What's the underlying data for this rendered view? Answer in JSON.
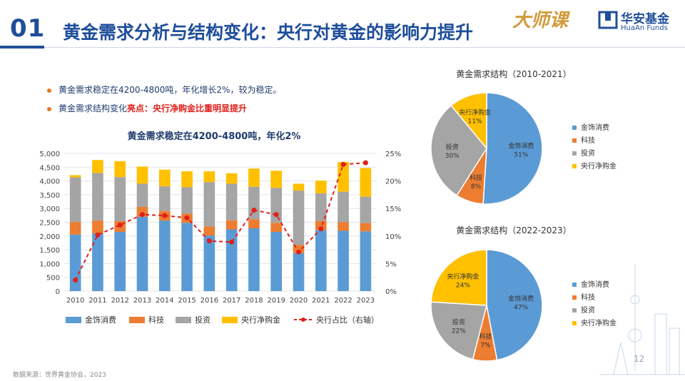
{
  "header": {
    "slide_number": "01",
    "title": "黄金需求分析与结构变化：央行对黄金的影响力提升",
    "course_logo": "大师课",
    "brand_cn": "华安基金",
    "brand_en": "HuaAn Funds"
  },
  "bullets": [
    {
      "text": "黄金需求稳定在4200-4800吨，年化增长2%，较为稳定。"
    },
    {
      "prefix": "黄金需求结构变化",
      "highlight": "亮点：央行净购金比重明显提升"
    }
  ],
  "chart_data": [
    {
      "type": "bar",
      "stacked": true,
      "title": "黄金需求稳定在4200-4800吨，年化2%",
      "categories": [
        "2010",
        "2011",
        "2012",
        "2013",
        "2014",
        "2015",
        "2016",
        "2017",
        "2018",
        "2019",
        "2020",
        "2021",
        "2022",
        "2023"
      ],
      "ylim": [
        0,
        5000
      ],
      "y_ticks": [
        "0",
        "500",
        "1,000",
        "1,500",
        "2,000",
        "2,500",
        "3,000",
        "3,500",
        "4,000",
        "4,500",
        "5,000"
      ],
      "y2lim": [
        0,
        25
      ],
      "y2_ticks": [
        "0%",
        "5%",
        "10%",
        "15%",
        "20%",
        "25%"
      ],
      "series": [
        {
          "name": "金饰消费",
          "color": "#5b9bd5",
          "values": [
            2050,
            2100,
            2150,
            2700,
            2560,
            2480,
            2020,
            2240,
            2280,
            2150,
            1380,
            2220,
            2190,
            2170
          ]
        },
        {
          "name": "科技",
          "color": "#ed7d31",
          "values": [
            460,
            460,
            390,
            360,
            350,
            330,
            330,
            330,
            330,
            330,
            300,
            330,
            310,
            300
          ]
        },
        {
          "name": "投资",
          "color": "#a5a5a5",
          "values": [
            1620,
            1730,
            1600,
            840,
            890,
            960,
            1610,
            1330,
            1180,
            1270,
            1970,
            1000,
            1110,
            960
          ]
        },
        {
          "name": "央行净购金",
          "color": "#ffc000",
          "values": [
            80,
            470,
            580,
            620,
            610,
            580,
            390,
            380,
            660,
            620,
            250,
            460,
            1080,
            1040
          ]
        }
      ],
      "line_series": {
        "name": "央行占比（右轴）",
        "color": "#e0201b",
        "values": [
          2.0,
          10.2,
          12.0,
          13.9,
          13.7,
          13.3,
          9.1,
          8.9,
          14.7,
          13.9,
          7.1,
          11.3,
          23.0,
          23.3
        ]
      }
    },
    {
      "type": "pie",
      "title": "黄金需求结构（2010-2021）",
      "slices": [
        {
          "name": "金饰消费",
          "value": 51,
          "label": "51%",
          "color": "#5b9bd5"
        },
        {
          "name": "科技",
          "value": 8,
          "label": "8%",
          "color": "#ed7d31"
        },
        {
          "name": "投资",
          "value": 30,
          "label": "30%",
          "color": "#a5a5a5"
        },
        {
          "name": "央行净购金",
          "value": 11,
          "label": "11%",
          "color": "#ffc000"
        }
      ]
    },
    {
      "type": "pie",
      "title": "黄金需求结构（2022-2023）",
      "slices": [
        {
          "name": "金饰消费",
          "value": 47,
          "label": "47%",
          "color": "#5b9bd5"
        },
        {
          "name": "科技",
          "value": 7,
          "label": "7%",
          "color": "#ed7d31"
        },
        {
          "name": "投资",
          "value": 22,
          "label": "22%",
          "color": "#a5a5a5"
        },
        {
          "name": "央行净购金",
          "value": 24,
          "label": "24%",
          "color": "#ffc000"
        }
      ]
    }
  ],
  "footer": {
    "source": "数据来源：世界黄金协会，2023",
    "page": "12"
  }
}
